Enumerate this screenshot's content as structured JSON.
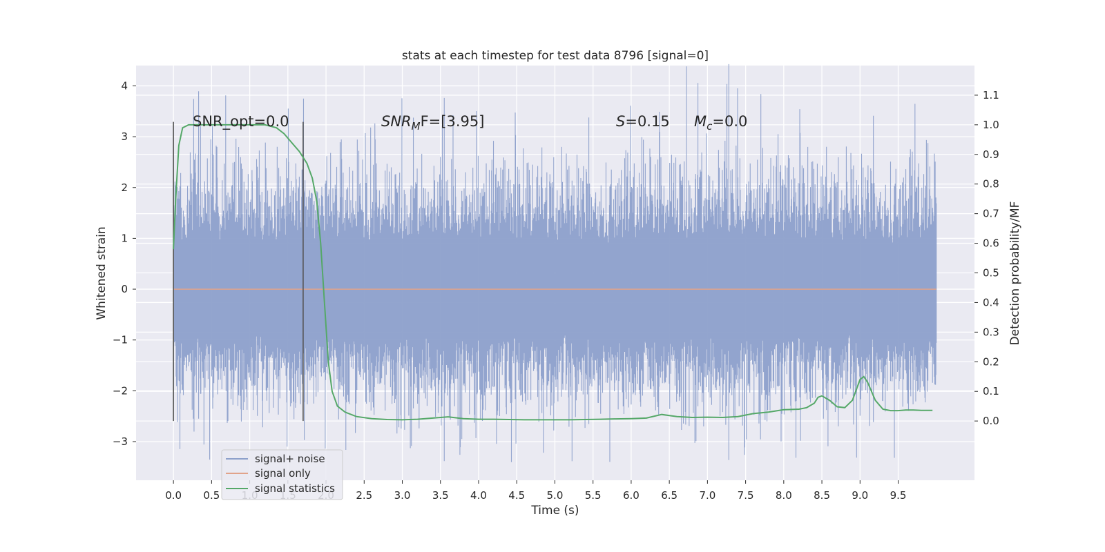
{
  "chart_data": {
    "type": "line",
    "title": "stats at each timestep for test data 8796 [signal=0]",
    "xlabel": "Time (s)",
    "ylabel_left": "Whitened strain",
    "ylabel_right": "Detection probability/MF",
    "xlim": [
      -0.49,
      10.5
    ],
    "ylim_left": [
      -3.76,
      4.4
    ],
    "ylim_right": [
      -0.2,
      1.2
    ],
    "x_ticks": [
      "0.0",
      "0.5",
      "1.0",
      "1.5",
      "2.0",
      "2.5",
      "3.0",
      "3.5",
      "4.0",
      "4.5",
      "5.0",
      "5.5",
      "6.0",
      "6.5",
      "7.0",
      "7.5",
      "8.0",
      "8.5",
      "9.0",
      "9.5"
    ],
    "y_ticks_left": [
      "−3",
      "−2",
      "−1",
      "0",
      "1",
      "2",
      "3",
      "4"
    ],
    "y_ticks_right": [
      "0.0",
      "0.1",
      "0.2",
      "0.3",
      "0.4",
      "0.5",
      "0.6",
      "0.7",
      "0.8",
      "0.9",
      "1.0",
      "1.1"
    ],
    "grid": true,
    "legend_position": "lower-left",
    "colors": {
      "noise": "#8da0cb",
      "signal": "#e1a38a",
      "stats": "#55a868",
      "background": "#eaeaf2"
    },
    "annotations": {
      "snr_opt": "SNR_opt=0.0",
      "snr_mf_base": "SNR",
      "snr_mf_sub": "M",
      "snr_mf_rest": "F=[3.95]",
      "s_label": "S",
      "s_value": "=0.15",
      "mc_base": "M",
      "mc_sub": "c",
      "mc_value": "=0.0"
    },
    "window_markers_x": [
      0.0,
      1.7
    ],
    "series": [
      {
        "name": "signal+ noise",
        "description_kind": "noise",
        "x_range": [
          0.0,
          10.0
        ],
        "envelope": [
          [
            0,
            -2.6,
            3.0
          ],
          [
            1,
            -2.8,
            2.6
          ],
          [
            2,
            -2.5,
            2.7
          ],
          [
            3,
            -2.9,
            2.6
          ],
          [
            4,
            -2.7,
            2.6
          ],
          [
            5,
            -2.9,
            2.7
          ],
          [
            6,
            -2.7,
            2.6
          ],
          [
            7,
            -2.8,
            3.2
          ],
          [
            8,
            -2.7,
            2.7
          ],
          [
            9,
            -2.8,
            2.7
          ],
          [
            10,
            -2.5,
            2.6
          ]
        ]
      },
      {
        "name": "signal only",
        "x": [
          0.0,
          10.0
        ],
        "y": [
          0.0,
          0.0
        ]
      },
      {
        "name": "signal statistics",
        "x": [
          0.0,
          0.03,
          0.07,
          0.12,
          0.2,
          0.3,
          0.5,
          0.8,
          1.0,
          1.2,
          1.35,
          1.45,
          1.55,
          1.65,
          1.75,
          1.82,
          1.88,
          1.93,
          1.98,
          2.03,
          2.08,
          2.15,
          2.25,
          2.4,
          2.6,
          2.8,
          3.0,
          3.2,
          3.4,
          3.6,
          3.8,
          4.0,
          4.2,
          4.4,
          4.6,
          4.8,
          5.0,
          5.2,
          5.4,
          5.6,
          5.8,
          6.0,
          6.2,
          6.4,
          6.6,
          6.8,
          7.0,
          7.2,
          7.4,
          7.6,
          7.8,
          8.0,
          8.2,
          8.3,
          8.4,
          8.45,
          8.5,
          8.6,
          8.7,
          8.8,
          8.9,
          9.0,
          9.05,
          9.1,
          9.2,
          9.3,
          9.4,
          9.5,
          9.6,
          9.7,
          9.8,
          9.95
        ],
        "y": [
          0.58,
          0.75,
          0.93,
          0.99,
          1.0,
          1.0,
          1.0,
          1.0,
          1.0,
          1.0,
          0.99,
          0.97,
          0.94,
          0.91,
          0.87,
          0.82,
          0.74,
          0.6,
          0.4,
          0.2,
          0.1,
          0.05,
          0.03,
          0.015,
          0.008,
          0.005,
          0.004,
          0.006,
          0.01,
          0.014,
          0.008,
          0.006,
          0.006,
          0.005,
          0.004,
          0.004,
          0.004,
          0.004,
          0.005,
          0.006,
          0.007,
          0.008,
          0.01,
          0.022,
          0.015,
          0.012,
          0.013,
          0.012,
          0.015,
          0.025,
          0.03,
          0.038,
          0.04,
          0.045,
          0.06,
          0.08,
          0.085,
          0.07,
          0.048,
          0.045,
          0.07,
          0.14,
          0.15,
          0.13,
          0.07,
          0.04,
          0.035,
          0.035,
          0.037,
          0.037,
          0.036,
          0.036
        ]
      }
    ]
  }
}
